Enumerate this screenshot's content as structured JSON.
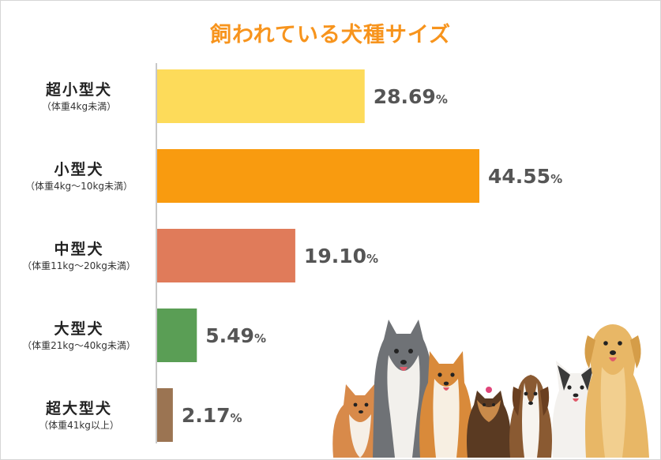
{
  "chart_data": {
    "type": "bar",
    "orientation": "horizontal",
    "title": "飼われている犬種サイズ",
    "categories": [
      {
        "name": "超小型犬",
        "sub": "（体重4kg未満）"
      },
      {
        "name": "小型犬",
        "sub": "（体重4kg〜10kg未満）"
      },
      {
        "name": "中型犬",
        "sub": "（体重11kg〜20kg未満）"
      },
      {
        "name": "大型犬",
        "sub": "（体重21kg〜40kg未満）"
      },
      {
        "name": "超大型犬",
        "sub": "（体重41kg以上）"
      }
    ],
    "values": [
      28.69,
      44.55,
      19.1,
      5.49,
      2.17
    ],
    "value_labels": [
      "28.69",
      "44.55",
      "19.10",
      "5.49",
      "2.17"
    ],
    "unit": "%",
    "colors": [
      "#fddb5a",
      "#f99b0f",
      "#e07b5a",
      "#5a9e55",
      "#9b7452"
    ],
    "title_color": "#f7941d",
    "label_color": "#555555",
    "axis_color": "#c8c8c8",
    "grid": false,
    "legend": "none",
    "xlim": [
      0,
      50
    ]
  },
  "decoration": {
    "image": "dogs-illustration",
    "dogs": [
      "corgi",
      "siberian-husky",
      "shiba-inu",
      "yorkshire-terrier",
      "beagle",
      "french-bulldog",
      "golden-retriever"
    ]
  }
}
